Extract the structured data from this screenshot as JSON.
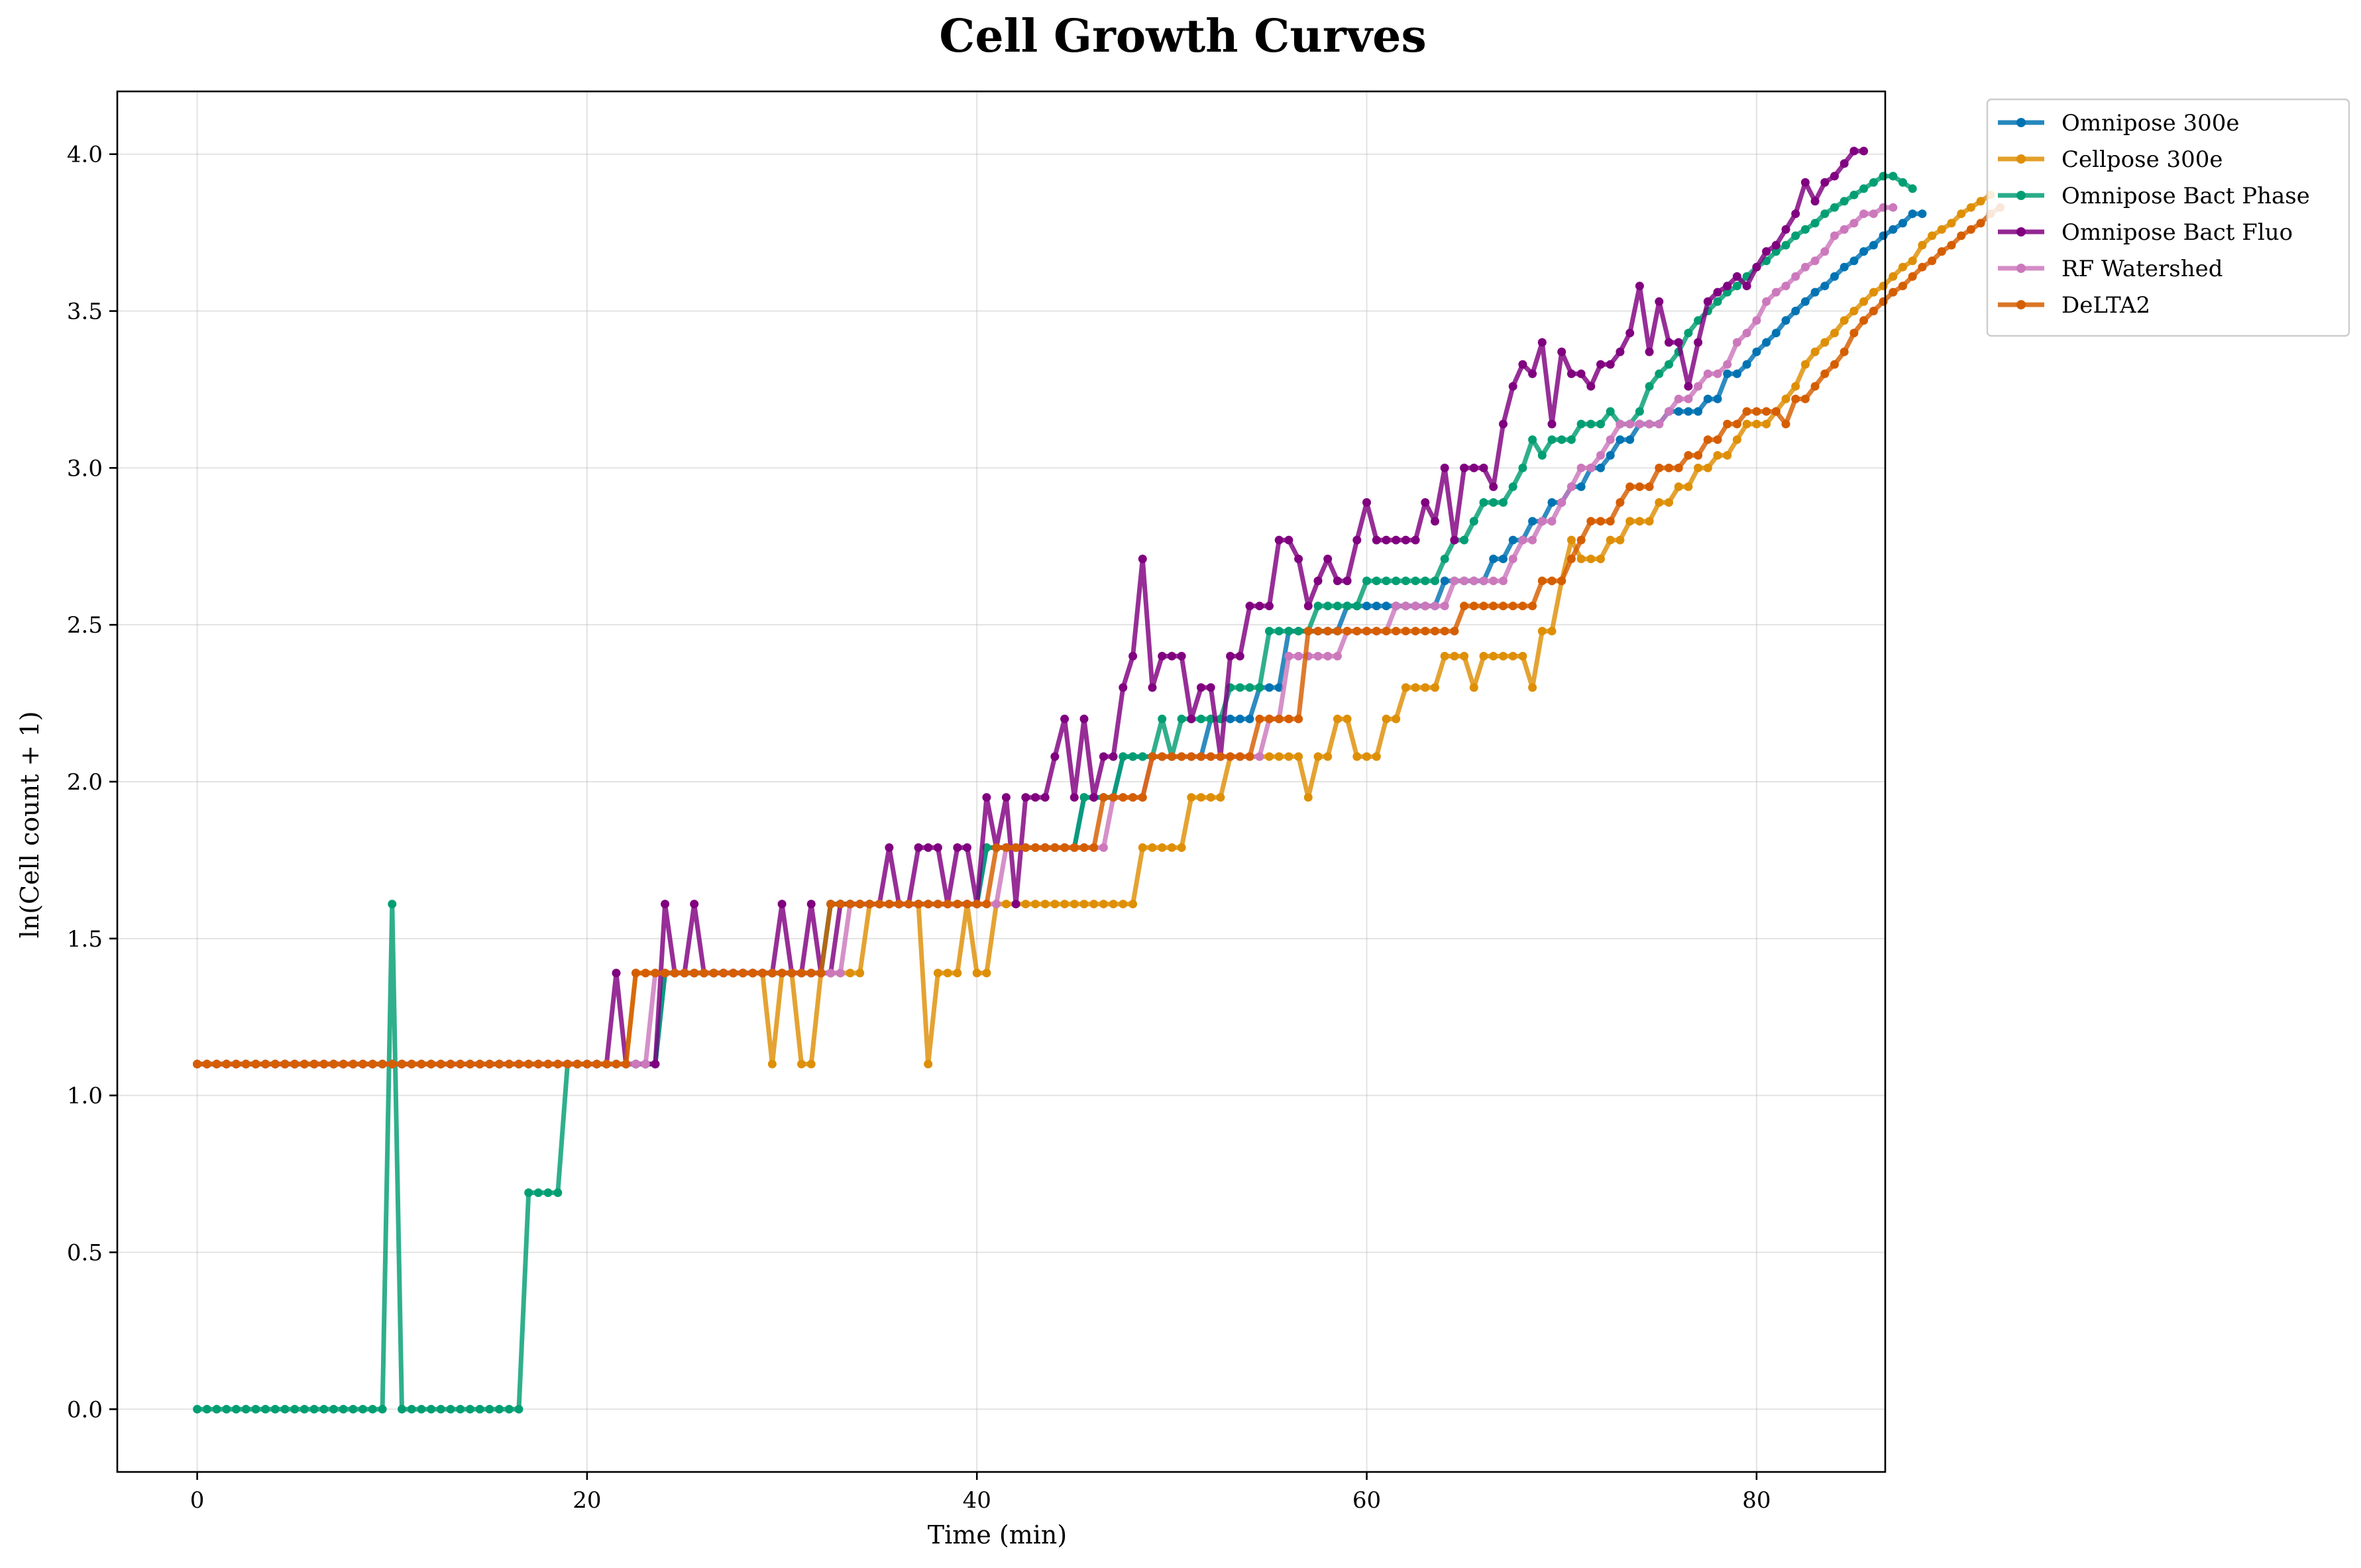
{
  "chart_data": {
    "type": "line",
    "title": "Cell Growth Curves",
    "xlabel": "Time (min)",
    "ylabel": "ln(Cell count + 1)",
    "xlim": [
      -4.1,
      86.6
    ],
    "ylim": [
      -0.2,
      4.2
    ],
    "xticks": [
      0,
      20,
      40,
      60,
      80
    ],
    "yticks": [
      0.0,
      0.5,
      1.0,
      1.5,
      2.0,
      2.5,
      3.0,
      3.5,
      4.0
    ],
    "ytick_labels": [
      "0.0",
      "0.5",
      "1.0",
      "1.5",
      "2.0",
      "2.5",
      "3.0",
      "3.5",
      "4.0"
    ],
    "grid": true,
    "legend_position": "outside-top-right",
    "x_step": 0.5,
    "series": [
      {
        "name": "Omnipose 300e",
        "color": "#0173b2",
        "values": [
          1.1,
          1.1,
          1.1,
          1.1,
          1.1,
          1.1,
          1.1,
          1.1,
          1.1,
          1.1,
          1.1,
          1.1,
          1.1,
          1.1,
          1.1,
          1.1,
          1.1,
          1.1,
          1.1,
          1.1,
          1.1,
          1.1,
          1.1,
          1.1,
          1.1,
          1.1,
          1.1,
          1.1,
          1.1,
          1.1,
          1.1,
          1.1,
          1.1,
          1.1,
          1.1,
          1.1,
          1.1,
          1.1,
          1.1,
          1.1,
          1.1,
          1.1,
          1.1,
          1.1,
          1.1,
          1.1,
          1.1,
          1.1,
          1.39,
          1.39,
          1.39,
          1.39,
          1.39,
          1.39,
          1.39,
          1.39,
          1.39,
          1.39,
          1.39,
          1.39,
          1.39,
          1.39,
          1.39,
          1.39,
          1.39,
          1.61,
          1.61,
          1.61,
          1.61,
          1.61,
          1.61,
          1.61,
          1.61,
          1.61,
          1.61,
          1.61,
          1.61,
          1.61,
          1.61,
          1.61,
          1.61,
          1.79,
          1.79,
          1.79,
          1.79,
          1.79,
          1.79,
          1.79,
          1.79,
          1.79,
          1.79,
          1.95,
          1.95,
          1.95,
          1.95,
          2.08,
          2.08,
          2.08,
          2.08,
          2.08,
          2.08,
          2.08,
          2.08,
          2.08,
          2.2,
          2.2,
          2.2,
          2.2,
          2.2,
          2.3,
          2.3,
          2.3,
          2.48,
          2.48,
          2.48,
          2.48,
          2.48,
          2.48,
          2.56,
          2.56,
          2.56,
          2.56,
          2.56,
          2.56,
          2.56,
          2.56,
          2.56,
          2.56,
          2.64,
          2.64,
          2.64,
          2.64,
          2.64,
          2.71,
          2.71,
          2.77,
          2.77,
          2.83,
          2.83,
          2.89,
          2.89,
          2.94,
          2.94,
          3.0,
          3.0,
          3.04,
          3.09,
          3.09,
          3.14,
          3.14,
          3.14,
          3.18,
          3.18,
          3.18,
          3.18,
          3.22,
          3.22,
          3.3,
          3.3,
          3.33,
          3.37,
          3.4,
          3.43,
          3.47,
          3.5,
          3.53,
          3.56,
          3.58,
          3.61,
          3.64,
          3.66,
          3.69,
          3.71,
          3.74,
          3.76,
          3.78,
          3.81,
          3.81
        ]
      },
      {
        "name": "Cellpose 300e",
        "color": "#de8f05",
        "values": [
          1.1,
          1.1,
          1.1,
          1.1,
          1.1,
          1.1,
          1.1,
          1.1,
          1.1,
          1.1,
          1.1,
          1.1,
          1.1,
          1.1,
          1.1,
          1.1,
          1.1,
          1.1,
          1.1,
          1.1,
          1.1,
          1.1,
          1.1,
          1.1,
          1.1,
          1.1,
          1.1,
          1.1,
          1.1,
          1.1,
          1.1,
          1.1,
          1.1,
          1.1,
          1.1,
          1.1,
          1.1,
          1.1,
          1.1,
          1.1,
          1.1,
          1.1,
          1.1,
          1.1,
          1.1,
          1.39,
          1.39,
          1.39,
          1.39,
          1.39,
          1.39,
          1.39,
          1.39,
          1.39,
          1.39,
          1.39,
          1.39,
          1.39,
          1.39,
          1.1,
          1.39,
          1.39,
          1.1,
          1.1,
          1.39,
          1.39,
          1.39,
          1.39,
          1.39,
          1.61,
          1.61,
          1.61,
          1.61,
          1.61,
          1.61,
          1.1,
          1.39,
          1.39,
          1.39,
          1.61,
          1.39,
          1.39,
          1.61,
          1.61,
          1.61,
          1.61,
          1.61,
          1.61,
          1.61,
          1.61,
          1.61,
          1.61,
          1.61,
          1.61,
          1.61,
          1.61,
          1.61,
          1.79,
          1.79,
          1.79,
          1.79,
          1.79,
          1.95,
          1.95,
          1.95,
          1.95,
          2.08,
          2.08,
          2.08,
          2.08,
          2.08,
          2.08,
          2.08,
          2.08,
          1.95,
          2.08,
          2.08,
          2.2,
          2.2,
          2.08,
          2.08,
          2.08,
          2.2,
          2.2,
          2.3,
          2.3,
          2.3,
          2.3,
          2.4,
          2.4,
          2.4,
          2.3,
          2.4,
          2.4,
          2.4,
          2.4,
          2.4,
          2.3,
          2.48,
          2.48,
          2.64,
          2.77,
          2.71,
          2.71,
          2.71,
          2.77,
          2.77,
          2.83,
          2.83,
          2.83,
          2.89,
          2.89,
          2.94,
          2.94,
          3.0,
          3.0,
          3.04,
          3.04,
          3.09,
          3.14,
          3.14,
          3.14,
          3.18,
          3.22,
          3.26,
          3.33,
          3.37,
          3.4,
          3.43,
          3.47,
          3.5,
          3.53,
          3.56,
          3.58,
          3.61,
          3.64,
          3.66,
          3.71,
          3.74,
          3.76,
          3.78,
          3.81,
          3.83,
          3.85,
          3.87
        ]
      },
      {
        "name": "Omnipose Bact Phase",
        "color": "#029e73",
        "values": [
          0.0,
          0.0,
          0.0,
          0.0,
          0.0,
          0.0,
          0.0,
          0.0,
          0.0,
          0.0,
          0.0,
          0.0,
          0.0,
          0.0,
          0.0,
          0.0,
          0.0,
          0.0,
          0.0,
          0.0,
          1.61,
          0.0,
          0.0,
          0.0,
          0.0,
          0.0,
          0.0,
          0.0,
          0.0,
          0.0,
          0.0,
          0.0,
          0.0,
          0.0,
          0.69,
          0.69,
          0.69,
          0.69,
          1.1,
          1.1,
          1.1,
          1.1,
          1.1,
          1.1,
          1.1,
          1.1,
          1.1,
          1.1,
          1.39,
          1.39,
          1.39,
          1.39,
          1.39,
          1.39,
          1.39,
          1.39,
          1.39,
          1.39,
          1.39,
          1.39,
          1.39,
          1.39,
          1.39,
          1.39,
          1.39,
          1.61,
          1.61,
          1.61,
          1.61,
          1.61,
          1.61,
          1.61,
          1.61,
          1.61,
          1.61,
          1.61,
          1.61,
          1.61,
          1.61,
          1.61,
          1.61,
          1.79,
          1.79,
          1.79,
          1.79,
          1.79,
          1.79,
          1.79,
          1.79,
          1.79,
          1.79,
          1.95,
          1.95,
          1.95,
          1.95,
          2.08,
          2.08,
          2.08,
          2.08,
          2.2,
          2.08,
          2.2,
          2.2,
          2.2,
          2.2,
          2.2,
          2.3,
          2.3,
          2.3,
          2.3,
          2.48,
          2.48,
          2.48,
          2.48,
          2.48,
          2.56,
          2.56,
          2.56,
          2.56,
          2.56,
          2.64,
          2.64,
          2.64,
          2.64,
          2.64,
          2.64,
          2.64,
          2.64,
          2.71,
          2.77,
          2.77,
          2.83,
          2.89,
          2.89,
          2.89,
          2.94,
          3.0,
          3.09,
          3.04,
          3.09,
          3.09,
          3.09,
          3.14,
          3.14,
          3.14,
          3.18,
          3.14,
          3.14,
          3.18,
          3.26,
          3.3,
          3.33,
          3.37,
          3.43,
          3.47,
          3.5,
          3.53,
          3.56,
          3.58,
          3.61,
          3.64,
          3.66,
          3.69,
          3.71,
          3.74,
          3.76,
          3.78,
          3.81,
          3.83,
          3.85,
          3.87,
          3.89,
          3.91,
          3.93,
          3.93,
          3.91,
          3.89
        ]
      },
      {
        "name": "Omnipose Bact Fluo",
        "color": "#800080",
        "values": [
          1.1,
          1.1,
          1.1,
          1.1,
          1.1,
          1.1,
          1.1,
          1.1,
          1.1,
          1.1,
          1.1,
          1.1,
          1.1,
          1.1,
          1.1,
          1.1,
          1.1,
          1.1,
          1.1,
          1.1,
          1.1,
          1.1,
          1.1,
          1.1,
          1.1,
          1.1,
          1.1,
          1.1,
          1.1,
          1.1,
          1.1,
          1.1,
          1.1,
          1.1,
          1.1,
          1.1,
          1.1,
          1.1,
          1.1,
          1.1,
          1.1,
          1.1,
          1.1,
          1.39,
          1.1,
          1.1,
          1.1,
          1.1,
          1.61,
          1.39,
          1.39,
          1.61,
          1.39,
          1.39,
          1.39,
          1.39,
          1.39,
          1.39,
          1.39,
          1.39,
          1.61,
          1.39,
          1.39,
          1.61,
          1.39,
          1.39,
          1.61,
          1.61,
          1.61,
          1.61,
          1.61,
          1.79,
          1.61,
          1.61,
          1.79,
          1.79,
          1.79,
          1.61,
          1.79,
          1.79,
          1.61,
          1.95,
          1.79,
          1.95,
          1.61,
          1.95,
          1.95,
          1.95,
          2.08,
          2.2,
          1.95,
          2.2,
          1.95,
          2.08,
          2.08,
          2.3,
          2.4,
          2.71,
          2.3,
          2.4,
          2.4,
          2.4,
          2.2,
          2.3,
          2.3,
          2.08,
          2.4,
          2.4,
          2.56,
          2.56,
          2.56,
          2.77,
          2.77,
          2.71,
          2.56,
          2.64,
          2.71,
          2.64,
          2.64,
          2.77,
          2.89,
          2.77,
          2.77,
          2.77,
          2.77,
          2.77,
          2.89,
          2.83,
          3.0,
          2.77,
          3.0,
          3.0,
          3.0,
          2.94,
          3.14,
          3.26,
          3.33,
          3.3,
          3.4,
          3.14,
          3.37,
          3.3,
          3.3,
          3.26,
          3.33,
          3.33,
          3.37,
          3.43,
          3.58,
          3.37,
          3.53,
          3.4,
          3.4,
          3.26,
          3.4,
          3.53,
          3.56,
          3.58,
          3.61,
          3.58,
          3.64,
          3.69,
          3.71,
          3.76,
          3.81,
          3.91,
          3.85,
          3.91,
          3.93,
          3.97,
          4.01,
          4.01
        ]
      },
      {
        "name": "RF Watershed",
        "color": "#cc78bc",
        "values": [
          1.1,
          1.1,
          1.1,
          1.1,
          1.1,
          1.1,
          1.1,
          1.1,
          1.1,
          1.1,
          1.1,
          1.1,
          1.1,
          1.1,
          1.1,
          1.1,
          1.1,
          1.1,
          1.1,
          1.1,
          1.1,
          1.1,
          1.1,
          1.1,
          1.1,
          1.1,
          1.1,
          1.1,
          1.1,
          1.1,
          1.1,
          1.1,
          1.1,
          1.1,
          1.1,
          1.1,
          1.1,
          1.1,
          1.1,
          1.1,
          1.1,
          1.1,
          1.1,
          1.1,
          1.1,
          1.1,
          1.1,
          1.39,
          1.39,
          1.39,
          1.39,
          1.39,
          1.39,
          1.39,
          1.39,
          1.39,
          1.39,
          1.39,
          1.39,
          1.39,
          1.39,
          1.39,
          1.39,
          1.39,
          1.39,
          1.39,
          1.39,
          1.61,
          1.61,
          1.61,
          1.61,
          1.61,
          1.61,
          1.61,
          1.61,
          1.61,
          1.61,
          1.61,
          1.61,
          1.61,
          1.61,
          1.61,
          1.61,
          1.79,
          1.79,
          1.79,
          1.79,
          1.79,
          1.79,
          1.79,
          1.79,
          1.79,
          1.79,
          1.79,
          1.95,
          1.95,
          1.95,
          1.95,
          2.08,
          2.08,
          2.08,
          2.08,
          2.08,
          2.08,
          2.08,
          2.08,
          2.08,
          2.08,
          2.08,
          2.08,
          2.2,
          2.2,
          2.4,
          2.4,
          2.4,
          2.4,
          2.4,
          2.4,
          2.48,
          2.48,
          2.48,
          2.48,
          2.48,
          2.56,
          2.56,
          2.56,
          2.56,
          2.56,
          2.56,
          2.64,
          2.64,
          2.64,
          2.64,
          2.64,
          2.64,
          2.71,
          2.77,
          2.77,
          2.83,
          2.83,
          2.89,
          2.94,
          3.0,
          3.0,
          3.04,
          3.09,
          3.14,
          3.14,
          3.14,
          3.14,
          3.14,
          3.18,
          3.22,
          3.22,
          3.26,
          3.3,
          3.3,
          3.33,
          3.4,
          3.43,
          3.47,
          3.53,
          3.56,
          3.58,
          3.61,
          3.64,
          3.66,
          3.69,
          3.74,
          3.76,
          3.78,
          3.81,
          3.81,
          3.83,
          3.83
        ]
      },
      {
        "name": "DeLTA2",
        "color": "#d55e00",
        "values": [
          1.1,
          1.1,
          1.1,
          1.1,
          1.1,
          1.1,
          1.1,
          1.1,
          1.1,
          1.1,
          1.1,
          1.1,
          1.1,
          1.1,
          1.1,
          1.1,
          1.1,
          1.1,
          1.1,
          1.1,
          1.1,
          1.1,
          1.1,
          1.1,
          1.1,
          1.1,
          1.1,
          1.1,
          1.1,
          1.1,
          1.1,
          1.1,
          1.1,
          1.1,
          1.1,
          1.1,
          1.1,
          1.1,
          1.1,
          1.1,
          1.1,
          1.1,
          1.1,
          1.1,
          1.1,
          1.39,
          1.39,
          1.39,
          1.39,
          1.39,
          1.39,
          1.39,
          1.39,
          1.39,
          1.39,
          1.39,
          1.39,
          1.39,
          1.39,
          1.39,
          1.39,
          1.39,
          1.39,
          1.39,
          1.39,
          1.61,
          1.61,
          1.61,
          1.61,
          1.61,
          1.61,
          1.61,
          1.61,
          1.61,
          1.61,
          1.61,
          1.61,
          1.61,
          1.61,
          1.61,
          1.61,
          1.61,
          1.79,
          1.79,
          1.79,
          1.79,
          1.79,
          1.79,
          1.79,
          1.79,
          1.79,
          1.79,
          1.79,
          1.95,
          1.95,
          1.95,
          1.95,
          1.95,
          2.08,
          2.08,
          2.08,
          2.08,
          2.08,
          2.08,
          2.08,
          2.08,
          2.08,
          2.08,
          2.08,
          2.2,
          2.2,
          2.2,
          2.2,
          2.2,
          2.48,
          2.48,
          2.48,
          2.48,
          2.48,
          2.48,
          2.48,
          2.48,
          2.48,
          2.48,
          2.48,
          2.48,
          2.48,
          2.48,
          2.48,
          2.48,
          2.56,
          2.56,
          2.56,
          2.56,
          2.56,
          2.56,
          2.56,
          2.56,
          2.64,
          2.64,
          2.64,
          2.71,
          2.77,
          2.83,
          2.83,
          2.83,
          2.89,
          2.94,
          2.94,
          2.94,
          3.0,
          3.0,
          3.0,
          3.04,
          3.04,
          3.09,
          3.09,
          3.14,
          3.14,
          3.18,
          3.18,
          3.18,
          3.18,
          3.14,
          3.22,
          3.22,
          3.26,
          3.3,
          3.33,
          3.37,
          3.43,
          3.47,
          3.5,
          3.53,
          3.56,
          3.58,
          3.61,
          3.64,
          3.66,
          3.69,
          3.71,
          3.74,
          3.76,
          3.78,
          3.81,
          3.83
        ]
      }
    ]
  }
}
